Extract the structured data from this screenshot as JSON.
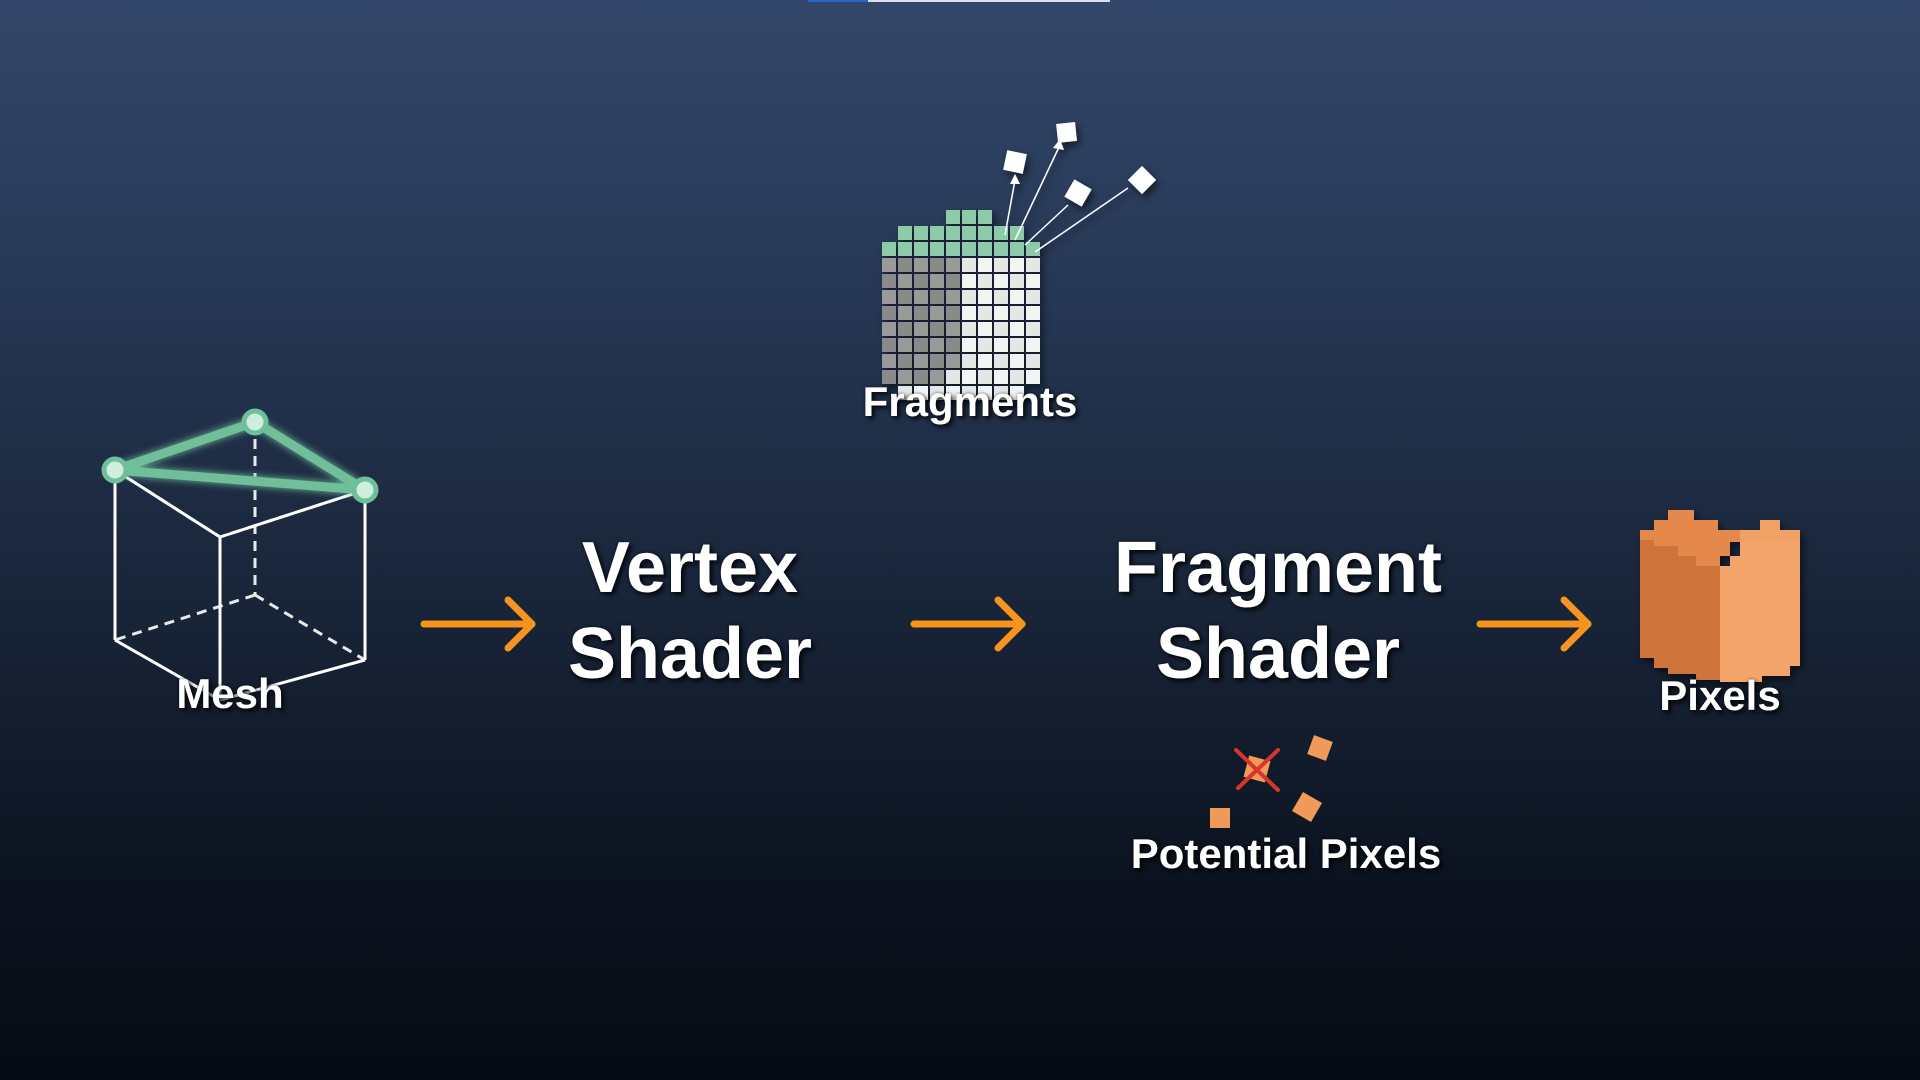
{
  "labels": {
    "mesh": "Mesh",
    "vertex_shader": [
      "Vertex",
      "Shader"
    ],
    "fragment_shader": [
      "Fragment",
      "Shader"
    ],
    "pixels": "Pixels",
    "fragments": "Fragments",
    "potential_pixels": "Potential Pixels"
  },
  "colors": {
    "arrow": "#f7941d",
    "mesh_highlight": "#6fbf9a",
    "fragment_top": "#8ccaa8",
    "pixel_orange": "#f09a5a",
    "reject_red": "#d9342b"
  },
  "icons": [
    "wireframe-cube-icon",
    "fragment-grid-icon",
    "pixel-cube-icon",
    "rejected-fragment-icon"
  ]
}
